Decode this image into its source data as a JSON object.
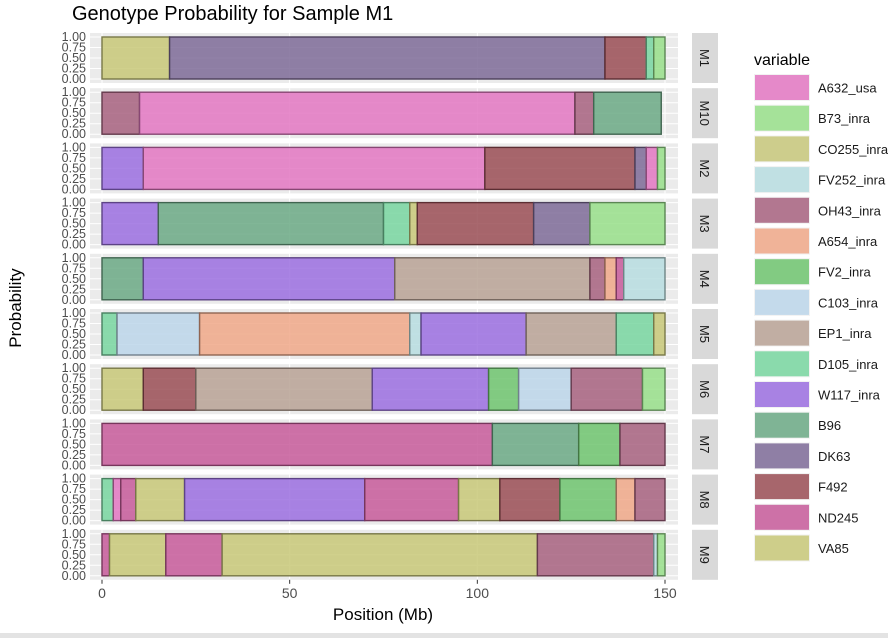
{
  "chart_data": {
    "type": "area",
    "subtype": "faceted-stacked-area",
    "title": "Genotype Probability for Sample M1",
    "xlabel": "Position (Mb)",
    "ylabel": "Probability",
    "xlim": [
      0,
      150
    ],
    "ylim": [
      0,
      1
    ],
    "x_ticks": [
      "0",
      "50",
      "100",
      "150"
    ],
    "y_ticks": [
      "0.00",
      "0.25",
      "0.50",
      "0.75",
      "1.00"
    ],
    "legend_title": "variable",
    "legend_position": "right",
    "grid": true,
    "series": [
      {
        "name": "A632_usa",
        "color": "#e377c2"
      },
      {
        "name": "B73_inra",
        "color": "#98df8a"
      },
      {
        "name": "CO255_inra",
        "color": "#c7c77a"
      },
      {
        "name": "FV252_inra",
        "color": "#b7dde0"
      },
      {
        "name": "OH43_inra",
        "color": "#a7617f"
      },
      {
        "name": "A654_inra",
        "color": "#f0a888"
      },
      {
        "name": "FV2_inra",
        "color": "#6fc46f"
      },
      {
        "name": "C103_inra",
        "color": "#bcd6ea"
      },
      {
        "name": "EP1_inra",
        "color": "#b9a295"
      },
      {
        "name": "D105_inra",
        "color": "#78d6a0"
      },
      {
        "name": "W117_inra",
        "color": "#9b6fe0"
      },
      {
        "name": "B96",
        "color": "#6ba985"
      },
      {
        "name": "DK63",
        "color": "#7e6b98"
      },
      {
        "name": "F492",
        "color": "#9a4d55"
      },
      {
        "name": "ND245",
        "color": "#c75a9a"
      },
      {
        "name": "VA85",
        "color": "#c8c878"
      }
    ],
    "panels": [
      {
        "label": "M1",
        "segments": [
          {
            "start": 0,
            "end": 18,
            "series": "VA85"
          },
          {
            "start": 18,
            "end": 134,
            "series": "DK63"
          },
          {
            "start": 134,
            "end": 145,
            "series": "F492"
          },
          {
            "start": 145,
            "end": 147,
            "series": "D105_inra"
          },
          {
            "start": 147,
            "end": 150,
            "series": "B73_inra"
          }
        ]
      },
      {
        "label": "M10",
        "segments": [
          {
            "start": 0,
            "end": 10,
            "series": "OH43_inra"
          },
          {
            "start": 10,
            "end": 126,
            "series": "A632_usa"
          },
          {
            "start": 126,
            "end": 131,
            "series": "OH43_inra"
          },
          {
            "start": 131,
            "end": 149,
            "series": "B96"
          }
        ]
      },
      {
        "label": "M2",
        "segments": [
          {
            "start": 0,
            "end": 11,
            "series": "W117_inra"
          },
          {
            "start": 11,
            "end": 102,
            "series": "A632_usa"
          },
          {
            "start": 102,
            "end": 142,
            "series": "F492"
          },
          {
            "start": 142,
            "end": 145,
            "series": "DK63"
          },
          {
            "start": 145,
            "end": 148,
            "series": "A632_usa"
          },
          {
            "start": 148,
            "end": 150,
            "series": "B73_inra"
          }
        ]
      },
      {
        "label": "M3",
        "segments": [
          {
            "start": 0,
            "end": 15,
            "series": "W117_inra"
          },
          {
            "start": 15,
            "end": 75,
            "series": "B96"
          },
          {
            "start": 75,
            "end": 82,
            "series": "D105_inra"
          },
          {
            "start": 82,
            "end": 84,
            "series": "VA85"
          },
          {
            "start": 84,
            "end": 115,
            "series": "F492"
          },
          {
            "start": 115,
            "end": 130,
            "series": "DK63"
          },
          {
            "start": 130,
            "end": 150,
            "series": "B73_inra"
          }
        ]
      },
      {
        "label": "M4",
        "segments": [
          {
            "start": 0,
            "end": 11,
            "series": "B96"
          },
          {
            "start": 11,
            "end": 78,
            "series": "W117_inra"
          },
          {
            "start": 78,
            "end": 130,
            "series": "EP1_inra"
          },
          {
            "start": 130,
            "end": 134,
            "series": "OH43_inra"
          },
          {
            "start": 134,
            "end": 137,
            "series": "A654_inra"
          },
          {
            "start": 137,
            "end": 139,
            "series": "ND245"
          },
          {
            "start": 139,
            "end": 150,
            "series": "FV252_inra"
          }
        ]
      },
      {
        "label": "M5",
        "segments": [
          {
            "start": 0,
            "end": 4,
            "series": "D105_inra"
          },
          {
            "start": 4,
            "end": 26,
            "series": "C103_inra"
          },
          {
            "start": 26,
            "end": 82,
            "series": "A654_inra"
          },
          {
            "start": 82,
            "end": 85,
            "series": "FV252_inra"
          },
          {
            "start": 85,
            "end": 113,
            "series": "W117_inra"
          },
          {
            "start": 113,
            "end": 137,
            "series": "EP1_inra"
          },
          {
            "start": 137,
            "end": 147,
            "series": "D105_inra"
          },
          {
            "start": 147,
            "end": 150,
            "series": "VA85"
          }
        ]
      },
      {
        "label": "M6",
        "segments": [
          {
            "start": 0,
            "end": 11,
            "series": "VA85"
          },
          {
            "start": 11,
            "end": 25,
            "series": "F492"
          },
          {
            "start": 25,
            "end": 72,
            "series": "EP1_inra"
          },
          {
            "start": 72,
            "end": 103,
            "series": "W117_inra"
          },
          {
            "start": 103,
            "end": 111,
            "series": "FV2_inra"
          },
          {
            "start": 111,
            "end": 125,
            "series": "C103_inra"
          },
          {
            "start": 125,
            "end": 144,
            "series": "OH43_inra"
          },
          {
            "start": 144,
            "end": 150,
            "series": "B73_inra"
          }
        ]
      },
      {
        "label": "M7",
        "segments": [
          {
            "start": 0,
            "end": 104,
            "series": "ND245"
          },
          {
            "start": 104,
            "end": 127,
            "series": "B96"
          },
          {
            "start": 127,
            "end": 138,
            "series": "FV2_inra"
          },
          {
            "start": 138,
            "end": 150,
            "series": "OH43_inra"
          }
        ]
      },
      {
        "label": "M8",
        "segments": [
          {
            "start": 0,
            "end": 3,
            "series": "D105_inra"
          },
          {
            "start": 3,
            "end": 5,
            "series": "A632_usa"
          },
          {
            "start": 5,
            "end": 9,
            "series": "ND245"
          },
          {
            "start": 9,
            "end": 22,
            "series": "VA85"
          },
          {
            "start": 22,
            "end": 70,
            "series": "W117_inra"
          },
          {
            "start": 70,
            "end": 95,
            "series": "ND245"
          },
          {
            "start": 95,
            "end": 106,
            "series": "VA85"
          },
          {
            "start": 106,
            "end": 122,
            "series": "F492"
          },
          {
            "start": 122,
            "end": 137,
            "series": "FV2_inra"
          },
          {
            "start": 137,
            "end": 142,
            "series": "A654_inra"
          },
          {
            "start": 142,
            "end": 150,
            "series": "OH43_inra"
          }
        ]
      },
      {
        "label": "M9",
        "segments": [
          {
            "start": 0,
            "end": 2,
            "series": "ND245"
          },
          {
            "start": 2,
            "end": 17,
            "series": "VA85"
          },
          {
            "start": 17,
            "end": 32,
            "series": "ND245"
          },
          {
            "start": 32,
            "end": 116,
            "series": "VA85"
          },
          {
            "start": 116,
            "end": 147,
            "series": "OH43_inra"
          },
          {
            "start": 147,
            "end": 148,
            "series": "FV252_inra"
          },
          {
            "start": 148,
            "end": 150,
            "series": "B73_inra"
          }
        ]
      }
    ]
  }
}
